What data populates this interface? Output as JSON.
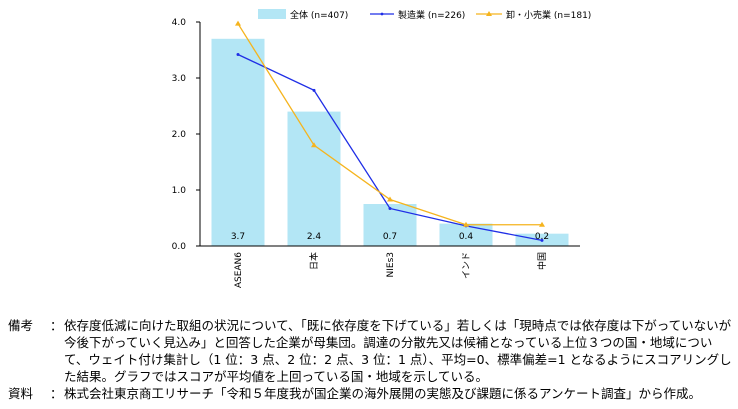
{
  "chart_data": {
    "type": "bar",
    "categories": [
      "ASEAN6",
      "日本",
      "NIEs3",
      "インド",
      "中国"
    ],
    "series": [
      {
        "name": "全体 (n=407)",
        "kind": "bar",
        "color": "#b3e6f5",
        "values": [
          3.7,
          2.4,
          0.75,
          0.4,
          0.22
        ]
      },
      {
        "name": "製造業 (n=226)",
        "kind": "line",
        "color": "#1f2ee6",
        "values": [
          3.42,
          2.78,
          0.67,
          0.36,
          0.1
        ]
      },
      {
        "name": "卸・小売業 (n=181)",
        "kind": "line",
        "color": "#f5b41e",
        "values": [
          3.97,
          1.8,
          0.83,
          0.38,
          0.38
        ]
      }
    ],
    "data_labels": [
      "3.7",
      "2.4",
      "0.7",
      "0.4",
      "0.2"
    ],
    "yticks": [
      "0.0",
      "1.0",
      "2.0",
      "3.0",
      "4.0"
    ],
    "ylim": [
      0,
      4
    ],
    "grid": false,
    "legend_position": "top"
  },
  "notes": {
    "bikou_label": "備考",
    "bikou_sep": "：",
    "bikou_text": "依存度低減に向けた取組の状況について、「既に依存度を下げている」若しくは「現時点では依存度は下がっていないが今後下がっていく見込み」と回答した企業が母集団。調達の分散先又は候補となっている上位３つの国・地域について、ウェイト付け集計し（1 位：3 点、2 位：2 点、3 位：1 点）、平均=0、標準偏差=1 となるようにスコアリングした結果。グラフではスコアが平均値を上回っている国・地域を示している。",
    "shiryou_label": "資料",
    "shiryou_sep": "：",
    "shiryou_text": "株式会社東京商工リサーチ「令和５年度我が国企業の海外展開の実態及び課題に係るアンケート調査」から作成。"
  }
}
